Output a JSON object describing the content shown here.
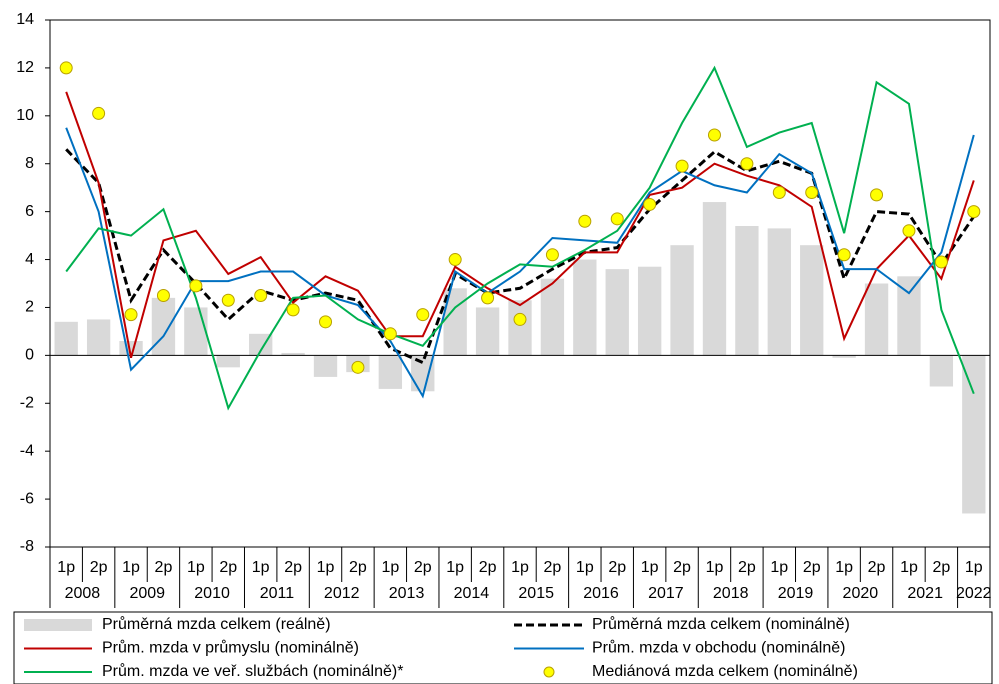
{
  "chart_data": {
    "type": "combo",
    "categories": [
      "1p",
      "2p",
      "1p",
      "2p",
      "1p",
      "2p",
      "1p",
      "2p",
      "1p",
      "2p",
      "1p",
      "2p",
      "1p",
      "2p",
      "1p",
      "2p",
      "1p",
      "2p",
      "1p",
      "2p",
      "1p",
      "2p",
      "1p",
      "2p",
      "1p",
      "2p",
      "1p",
      "2p",
      "1p"
    ],
    "years": [
      "2008",
      "2009",
      "2010",
      "2011",
      "2012",
      "2013",
      "2014",
      "2015",
      "2016",
      "2017",
      "2018",
      "2019",
      "2020",
      "2021",
      "2022"
    ],
    "ylim": [
      -8,
      14
    ],
    "yticks": [
      -8,
      -6,
      -4,
      -2,
      0,
      2,
      4,
      6,
      8,
      10,
      12,
      14
    ],
    "series": [
      {
        "name": "Průměrná mzda celkem (reálně)",
        "style": "bar",
        "color": "#d9d9d9",
        "values": [
          1.4,
          1.5,
          0.6,
          2.4,
          2.0,
          -0.5,
          0.9,
          0.1,
          -0.9,
          -0.7,
          -1.4,
          -1.5,
          2.8,
          2.0,
          2.3,
          3.2,
          4.0,
          3.6,
          3.7,
          4.6,
          6.4,
          5.4,
          5.3,
          4.6,
          -0.1,
          3.0,
          3.3,
          -1.3,
          -6.6
        ]
      },
      {
        "name": "Průměrná mzda celkem (nominálně)",
        "style": "dashed",
        "color": "#000000",
        "values": [
          8.6,
          7.2,
          2.3,
          4.4,
          3.0,
          1.5,
          2.7,
          2.3,
          2.6,
          2.3,
          0.3,
          -0.3,
          3.4,
          2.6,
          2.8,
          3.6,
          4.3,
          4.5,
          6.1,
          7.3,
          8.5,
          7.7,
          8.1,
          7.6,
          3.2,
          6.0,
          5.9,
          3.8,
          5.8
        ]
      },
      {
        "name": "Prům. mzda v průmyslu (nominálně)",
        "style": "line",
        "color": "#c00000",
        "values": [
          11.0,
          7.2,
          -0.1,
          4.8,
          5.2,
          3.4,
          4.1,
          2.2,
          3.3,
          2.7,
          0.8,
          0.8,
          3.7,
          2.8,
          2.1,
          3.0,
          4.3,
          4.3,
          6.7,
          7.0,
          8.0,
          7.5,
          7.1,
          6.2,
          0.7,
          3.6,
          5.0,
          3.2,
          7.3
        ]
      },
      {
        "name": "Prům. mzda v obchodu (nominálně)",
        "style": "line",
        "color": "#0070c0",
        "values": [
          9.5,
          6.0,
          -0.6,
          0.8,
          3.1,
          3.1,
          3.5,
          3.5,
          2.5,
          2.1,
          0.6,
          -1.7,
          3.5,
          2.6,
          3.5,
          4.9,
          4.8,
          4.7,
          6.8,
          7.7,
          7.1,
          6.8,
          8.4,
          7.6,
          3.6,
          3.6,
          2.6,
          4.3,
          9.2
        ]
      },
      {
        "name": "Prům. mzda ve veř. službách (nominálně)*",
        "style": "line",
        "color": "#00b050",
        "values": [
          3.5,
          5.3,
          5.0,
          6.1,
          2.4,
          -2.2,
          0.2,
          2.4,
          2.5,
          1.5,
          0.9,
          0.4,
          2.0,
          3.0,
          3.8,
          3.7,
          4.4,
          5.2,
          7.0,
          9.7,
          12.0,
          8.7,
          9.3,
          9.7,
          5.1,
          11.4,
          10.5,
          1.9,
          -1.6
        ]
      },
      {
        "name": "Mediánová mzda celkem (nominálně)",
        "style": "marker",
        "color": "#ffff00",
        "values": [
          12.0,
          10.1,
          1.7,
          2.5,
          2.9,
          2.3,
          2.5,
          1.9,
          1.4,
          -0.5,
          0.9,
          1.7,
          4.0,
          2.4,
          1.5,
          4.2,
          5.6,
          5.7,
          6.3,
          7.9,
          9.2,
          8.0,
          6.8,
          6.8,
          4.2,
          6.7,
          5.2,
          3.9,
          6.0
        ]
      }
    ]
  }
}
